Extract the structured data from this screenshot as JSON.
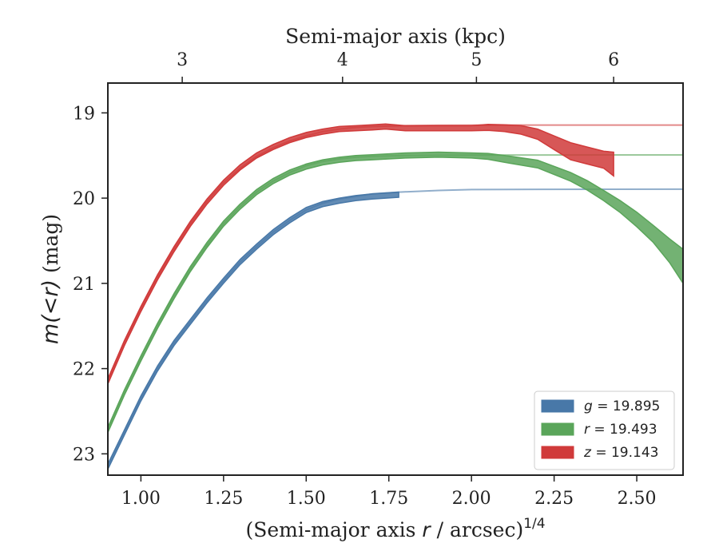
{
  "chart_data": {
    "type": "area",
    "xlabel": "(Semi-major axis r / arcsec)^1/4",
    "xlabel_parts": {
      "main": "(Semi-major axis ",
      "var": "r",
      "rest": " / arcsec)",
      "sup": "1/4"
    },
    "ylabel": "m(<r) (mag)",
    "ylabel_parts": {
      "main": "m(<r)",
      "unit": " (mag)"
    },
    "top_xlabel": "Semi-major axis (kpc)",
    "xlim": [
      0.9,
      2.64
    ],
    "ylim": [
      23.25,
      18.65
    ],
    "y_inverted": true,
    "x_ticks": [
      1.0,
      1.25,
      1.5,
      1.75,
      2.0,
      2.25,
      2.5
    ],
    "x_tick_labels": [
      "1.00",
      "1.25",
      "1.50",
      "1.75",
      "2.00",
      "2.25",
      "2.50"
    ],
    "y_ticks": [
      19,
      20,
      21,
      22,
      23
    ],
    "y_tick_labels": [
      "19",
      "20",
      "21",
      "22",
      "23"
    ],
    "top_x_ticks": [
      3,
      4,
      5,
      6
    ],
    "top_x_tick_labels": [
      "3",
      "4",
      "5",
      "6"
    ],
    "top_x_tick_positions": [
      1.125,
      1.61,
      2.015,
      2.43
    ],
    "legend_position": "lower-right",
    "grid": false,
    "series": [
      {
        "name": "g = 19.895",
        "legend_var": "g",
        "legend_value": "= 19.895",
        "color": "#4878a8",
        "asymptote": 19.895,
        "curve_x": [
          0.9,
          0.95,
          1.0,
          1.05,
          1.1,
          1.15,
          1.2,
          1.25,
          1.3,
          1.35,
          1.4,
          1.45,
          1.5,
          1.55,
          1.6,
          1.65,
          1.7,
          1.78,
          1.9,
          2.0,
          2.2,
          2.4,
          2.64
        ],
        "curve_y": [
          23.15,
          22.75,
          22.35,
          22.0,
          21.7,
          21.45,
          21.2,
          20.97,
          20.75,
          20.57,
          20.4,
          20.26,
          20.14,
          20.06,
          20.01,
          19.98,
          19.95,
          19.93,
          19.91,
          19.9,
          19.897,
          19.896,
          19.895
        ],
        "band_x": [
          0.9,
          0.95,
          1.0,
          1.05,
          1.1,
          1.15,
          1.2,
          1.25,
          1.3,
          1.35,
          1.4,
          1.45,
          1.5,
          1.55,
          1.6,
          1.65,
          1.7,
          1.78
        ],
        "band_y": [
          23.15,
          22.75,
          22.35,
          22.0,
          21.7,
          21.45,
          21.2,
          20.97,
          20.75,
          20.57,
          20.4,
          20.26,
          20.14,
          20.07,
          20.03,
          20.0,
          19.98,
          19.96
        ],
        "band_halfwidth": [
          0.03,
          0.03,
          0.03,
          0.03,
          0.03,
          0.03,
          0.03,
          0.03,
          0.03,
          0.03,
          0.03,
          0.03,
          0.03,
          0.03,
          0.03,
          0.03,
          0.03,
          0.03
        ]
      },
      {
        "name": "r = 19.493",
        "legend_var": "r",
        "legend_value": "= 19.493",
        "color": "#5aa55a",
        "asymptote": 19.493,
        "curve_x": [
          0.9,
          0.95,
          1.0,
          1.05,
          1.1,
          1.15,
          1.2,
          1.25,
          1.3,
          1.35,
          1.4,
          1.45,
          1.5,
          1.55,
          1.6,
          1.65,
          1.7,
          1.8,
          1.9,
          2.0,
          2.2,
          2.4,
          2.64
        ],
        "curve_y": [
          22.72,
          22.28,
          21.88,
          21.5,
          21.15,
          20.83,
          20.55,
          20.3,
          20.1,
          19.93,
          19.8,
          19.7,
          19.62,
          19.57,
          19.54,
          19.52,
          19.51,
          19.5,
          19.497,
          19.495,
          19.494,
          19.493,
          19.493
        ],
        "band_x": [
          0.9,
          0.95,
          1.0,
          1.05,
          1.1,
          1.15,
          1.2,
          1.25,
          1.3,
          1.35,
          1.4,
          1.45,
          1.5,
          1.55,
          1.6,
          1.65,
          1.7,
          1.75,
          1.8,
          1.9,
          2.0,
          2.05,
          2.1,
          2.2,
          2.3,
          2.35,
          2.4,
          2.45,
          2.5,
          2.55,
          2.6,
          2.64
        ],
        "band_y": [
          22.72,
          22.28,
          21.88,
          21.5,
          21.15,
          20.83,
          20.55,
          20.3,
          20.1,
          19.93,
          19.8,
          19.7,
          19.63,
          19.58,
          19.55,
          19.53,
          19.52,
          19.51,
          19.5,
          19.49,
          19.5,
          19.51,
          19.54,
          19.6,
          19.75,
          19.85,
          19.97,
          20.1,
          20.25,
          20.42,
          20.62,
          20.8
        ],
        "band_halfwidth": [
          0.03,
          0.03,
          0.03,
          0.03,
          0.03,
          0.03,
          0.03,
          0.03,
          0.03,
          0.03,
          0.03,
          0.03,
          0.03,
          0.03,
          0.03,
          0.03,
          0.03,
          0.03,
          0.03,
          0.03,
          0.03,
          0.035,
          0.04,
          0.045,
          0.05,
          0.055,
          0.06,
          0.07,
          0.085,
          0.1,
          0.14,
          0.2
        ]
      },
      {
        "name": "z = 19.143",
        "legend_var": "z",
        "legend_value": "= 19.143",
        "color": "#d03a3a",
        "asymptote": 19.143,
        "curve_x": [
          0.9,
          0.95,
          1.0,
          1.05,
          1.1,
          1.15,
          1.2,
          1.25,
          1.3,
          1.35,
          1.4,
          1.45,
          1.5,
          1.55,
          1.6,
          1.65,
          1.7,
          1.8,
          1.9,
          2.0,
          2.2,
          2.4,
          2.64
        ],
        "curve_y": [
          22.15,
          21.7,
          21.3,
          20.93,
          20.6,
          20.3,
          20.04,
          19.82,
          19.65,
          19.51,
          19.41,
          19.33,
          19.27,
          19.22,
          19.19,
          19.17,
          19.16,
          19.15,
          19.146,
          19.144,
          19.143,
          19.143,
          19.143
        ],
        "band_x": [
          0.9,
          0.95,
          1.0,
          1.05,
          1.1,
          1.15,
          1.2,
          1.25,
          1.3,
          1.35,
          1.4,
          1.45,
          1.5,
          1.55,
          1.6,
          1.65,
          1.7,
          1.74,
          1.8,
          1.9,
          2.0,
          2.05,
          2.1,
          2.15,
          2.2,
          2.25,
          2.3,
          2.35,
          2.4,
          2.43
        ],
        "band_y": [
          22.15,
          21.7,
          21.3,
          20.93,
          20.6,
          20.3,
          20.04,
          19.82,
          19.64,
          19.5,
          19.4,
          19.32,
          19.26,
          19.22,
          19.19,
          19.18,
          19.17,
          19.16,
          19.18,
          19.18,
          19.18,
          19.17,
          19.18,
          19.2,
          19.25,
          19.35,
          19.45,
          19.5,
          19.55,
          19.6
        ],
        "band_halfwidth": [
          0.03,
          0.03,
          0.03,
          0.03,
          0.03,
          0.03,
          0.03,
          0.03,
          0.03,
          0.03,
          0.03,
          0.03,
          0.03,
          0.03,
          0.03,
          0.03,
          0.03,
          0.03,
          0.03,
          0.03,
          0.03,
          0.035,
          0.04,
          0.05,
          0.06,
          0.08,
          0.1,
          0.1,
          0.1,
          0.14
        ]
      }
    ]
  }
}
